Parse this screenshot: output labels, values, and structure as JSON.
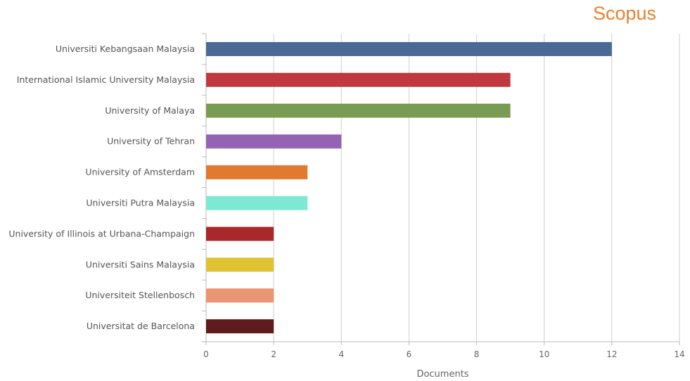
{
  "brand": "Scopus",
  "chart_data": {
    "type": "bar",
    "orientation": "horizontal",
    "categories": [
      "Universiti Kebangsaan Malaysia",
      "International Islamic University Malaysia",
      "University of Malaya",
      "University of Tehran",
      "University of Amsterdam",
      "Universiti Putra Malaysia",
      "University of Illinois at Urbana-Champaign",
      "Universiti Sains Malaysia",
      "Universiteit Stellenbosch",
      "Universitat de Barcelona"
    ],
    "values": [
      12,
      9,
      9,
      4,
      3,
      3,
      2,
      2,
      2,
      2
    ],
    "colors": [
      "#4a6a94",
      "#c0393f",
      "#7a9c52",
      "#9563b3",
      "#e07a2e",
      "#7de8d3",
      "#a8282c",
      "#e0c233",
      "#ea9573",
      "#5e1c1d"
    ],
    "xlabel": "Documents",
    "ylabel": "",
    "xlim": [
      0,
      14
    ],
    "xticks": [
      0,
      2,
      4,
      6,
      8,
      10,
      12,
      14
    ],
    "grid": true,
    "legend": "none"
  }
}
